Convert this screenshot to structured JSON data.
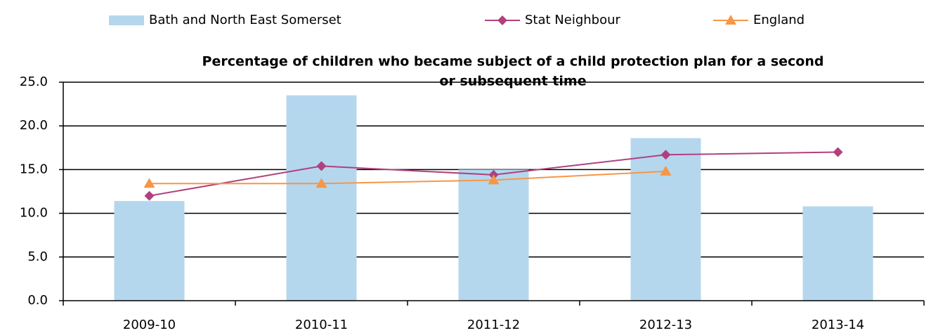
{
  "chart_data": {
    "type": "bar",
    "title": "Percentage of children who became subject of a child protection plan for a second or subsequent time",
    "categories": [
      "2009-10",
      "2010-11",
      "2011-12",
      "2012-13",
      "2013-14"
    ],
    "series": [
      {
        "name": "Bath and North East Somerset",
        "type": "bar",
        "color": "#b4d7ee",
        "values": [
          11.4,
          23.5,
          15.0,
          18.6,
          10.8
        ]
      },
      {
        "name": "Stat Neighbour",
        "type": "line",
        "marker": "diamond",
        "color": "#b0417e",
        "values": [
          12.0,
          15.4,
          14.4,
          16.7,
          17.0
        ]
      },
      {
        "name": "England",
        "type": "line",
        "marker": "triangle",
        "color": "#f79646",
        "values": [
          13.4,
          13.4,
          13.8,
          14.8,
          null
        ]
      }
    ],
    "ylim": [
      0,
      25
    ],
    "yticks": [
      {
        "value": 0,
        "label": "0.0"
      },
      {
        "value": 5,
        "label": "5.0"
      },
      {
        "value": 10,
        "label": "10.0"
      },
      {
        "value": 15,
        "label": "15.0"
      },
      {
        "value": 20,
        "label": "20.0"
      },
      {
        "value": 25,
        "label": "25.0"
      }
    ],
    "grid": true,
    "legend": "top"
  }
}
